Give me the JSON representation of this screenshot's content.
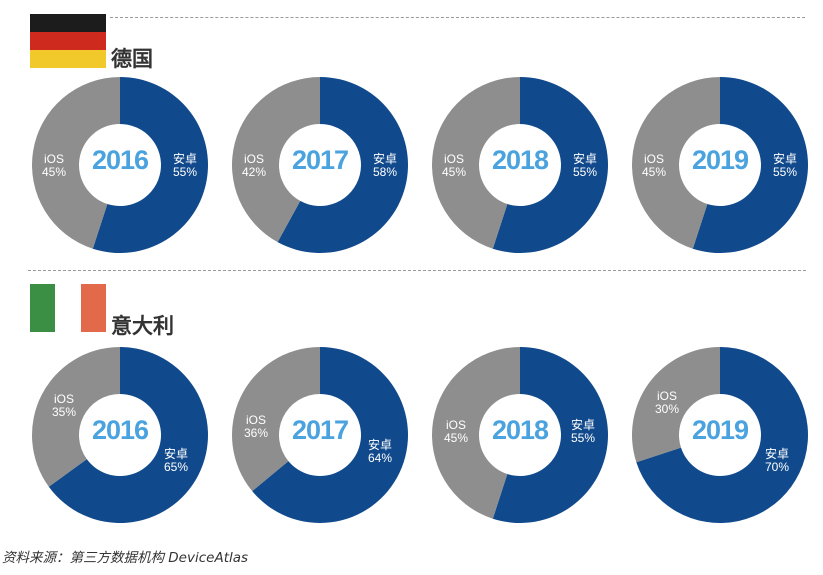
{
  "colors": {
    "android": "#114a8c",
    "ios": "#8e8e8e",
    "year": "#4aa3de",
    "hole": "#ffffff"
  },
  "legend_names": {
    "android": "安卓",
    "ios": "iOS"
  },
  "sections": [
    {
      "country": "德国",
      "flag": "germany-flag"
    },
    {
      "country": "意大利",
      "flag": "italy-flag"
    }
  ],
  "chart_data": [
    {
      "type": "pie",
      "title": "2016",
      "group": "德国",
      "categories": [
        "安卓",
        "iOS"
      ],
      "values": [
        55,
        45
      ],
      "labels": {
        "android": {
          "name": "安卓",
          "value": "55%"
        },
        "ios": {
          "name": "iOS",
          "value": "45%"
        }
      }
    },
    {
      "type": "pie",
      "title": "2017",
      "group": "德国",
      "categories": [
        "安卓",
        "iOS"
      ],
      "values": [
        58,
        42
      ],
      "labels": {
        "android": {
          "name": "安卓",
          "value": "58%"
        },
        "ios": {
          "name": "iOS",
          "value": "42%"
        }
      }
    },
    {
      "type": "pie",
      "title": "2018",
      "group": "德国",
      "categories": [
        "安卓",
        "iOS"
      ],
      "values": [
        55,
        45
      ],
      "labels": {
        "android": {
          "name": "安卓",
          "value": "55%"
        },
        "ios": {
          "name": "iOS",
          "value": "45%"
        }
      }
    },
    {
      "type": "pie",
      "title": "2019",
      "group": "德国",
      "categories": [
        "安卓",
        "iOS"
      ],
      "values": [
        55,
        45
      ],
      "labels": {
        "android": {
          "name": "安卓",
          "value": "55%"
        },
        "ios": {
          "name": "iOS",
          "value": "45%"
        }
      }
    },
    {
      "type": "pie",
      "title": "2016",
      "group": "意大利",
      "categories": [
        "安卓",
        "iOS"
      ],
      "values": [
        65,
        35
      ],
      "labels": {
        "android": {
          "name": "安卓",
          "value": "65%"
        },
        "ios": {
          "name": "iOS",
          "value": "35%"
        }
      }
    },
    {
      "type": "pie",
      "title": "2017",
      "group": "意大利",
      "categories": [
        "安卓",
        "iOS"
      ],
      "values": [
        64,
        36
      ],
      "labels": {
        "android": {
          "name": "安卓",
          "value": "64%"
        },
        "ios": {
          "name": "iOS",
          "value": "36%"
        }
      }
    },
    {
      "type": "pie",
      "title": "2018",
      "group": "意大利",
      "categories": [
        "安卓",
        "iOS"
      ],
      "values": [
        55,
        45
      ],
      "labels": {
        "android": {
          "name": "安卓",
          "value": "55%"
        },
        "ios": {
          "name": "iOS",
          "value": "45%"
        }
      }
    },
    {
      "type": "pie",
      "title": "2019",
      "group": "意大利",
      "categories": [
        "安卓",
        "iOS"
      ],
      "values": [
        70,
        30
      ],
      "labels": {
        "android": {
          "name": "安卓",
          "value": "70%"
        },
        "ios": {
          "name": "iOS",
          "value": "30%"
        }
      }
    }
  ],
  "source": "资料来源：第三方数据机构 DeviceAtlas"
}
